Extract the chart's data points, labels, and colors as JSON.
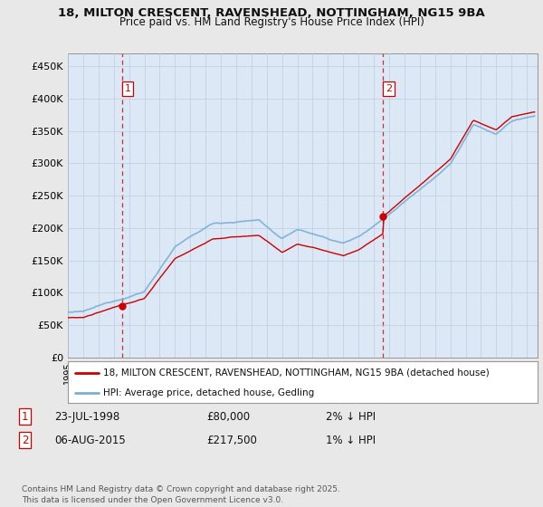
{
  "title_line1": "18, MILTON CRESCENT, RAVENSHEAD, NOTTINGHAM, NG15 9BA",
  "title_line2": "Price paid vs. HM Land Registry's House Price Index (HPI)",
  "ylim": [
    0,
    470000
  ],
  "yticks": [
    0,
    50000,
    100000,
    150000,
    200000,
    250000,
    300000,
    350000,
    400000,
    450000
  ],
  "ytick_labels": [
    "£0",
    "£50K",
    "£100K",
    "£150K",
    "£200K",
    "£250K",
    "£300K",
    "£350K",
    "£400K",
    "£450K"
  ],
  "sale1_date": 1998.56,
  "sale1_price": 80000,
  "sale2_date": 2015.6,
  "sale2_price": 217500,
  "legend1": "18, MILTON CRESCENT, RAVENSHEAD, NOTTINGHAM, NG15 9BA (detached house)",
  "legend2": "HPI: Average price, detached house, Gedling",
  "note1_label": "1",
  "note1_date": "23-JUL-1998",
  "note1_price": "£80,000",
  "note1_hpi": "2% ↓ HPI",
  "note2_label": "2",
  "note2_date": "06-AUG-2015",
  "note2_price": "£217,500",
  "note2_hpi": "1% ↓ HPI",
  "footer": "Contains HM Land Registry data © Crown copyright and database right 2025.\nThis data is licensed under the Open Government Licence v3.0.",
  "hpi_color": "#7aafd4",
  "price_color": "#cc0000",
  "vline_color": "#cc0000",
  "background_color": "#e8e8e8",
  "plot_bg_color": "#dce8f5"
}
